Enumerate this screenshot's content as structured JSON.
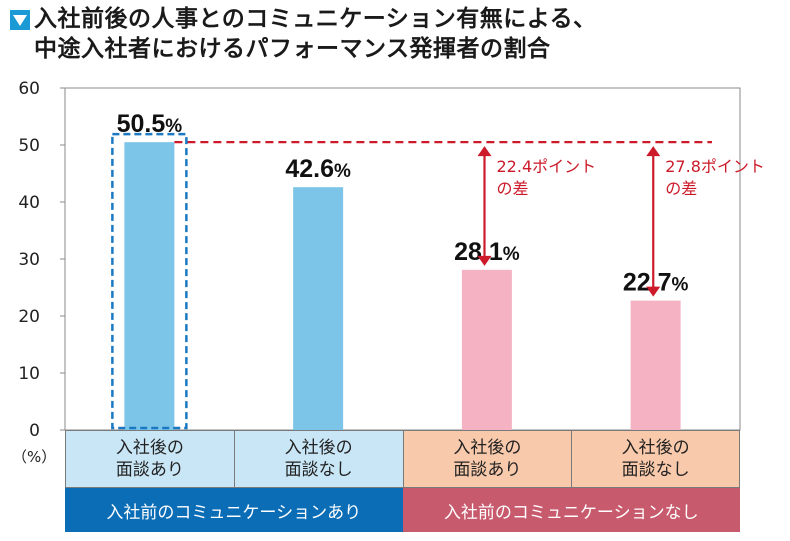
{
  "title": {
    "line1": "入社前後の人事とのコミュニケーション有無による、",
    "line2": "中途入社者におけるパフォーマンス発揮者の割合"
  },
  "percent_unit": "（%）",
  "colors": {
    "blue_bar": "#7dc5e8",
    "pink_bar": "#f4b2c3",
    "cat_blue_bg": "#c9e6f6",
    "cat_pink_bg": "#f8c9ab",
    "group_blue_bg": "#0a6db6",
    "group_pink_bg": "#c85a6e",
    "annotation_red": "#cc1a2a",
    "dashed_highlight": "#1a79c2",
    "title_icon": "#1c9ad6"
  },
  "groups": [
    {
      "label": "入社前のコミュニケーションあり"
    },
    {
      "label": "入社前のコミュニケーションなし"
    }
  ],
  "annotations": [
    {
      "line1": "22.4ポイント",
      "line2": "の差",
      "from": 50.5,
      "to": 28.1
    },
    {
      "line1": "27.8ポイント",
      "line2": "の差",
      "from": 50.5,
      "to": 22.7
    }
  ],
  "chart_data": {
    "type": "bar",
    "title": "入社前後の人事とのコミュニケーション有無による、中途入社者におけるパフォーマンス発揮者の割合",
    "categories": [
      "入社後の\n面談あり",
      "入社後の\n面談なし",
      "入社後の\n面談あり",
      "入社後の\n面談なし"
    ],
    "values": [
      50.5,
      42.6,
      28.1,
      22.7
    ],
    "value_labels": [
      "50.5",
      "42.6",
      "28.1",
      "22.7"
    ],
    "value_suffix": "%",
    "ylabel": "（%）",
    "ylim": [
      0,
      60
    ],
    "yticks": [
      0,
      10,
      20,
      30,
      40,
      50,
      60
    ],
    "grid": false,
    "reference_line": 50.5
  }
}
